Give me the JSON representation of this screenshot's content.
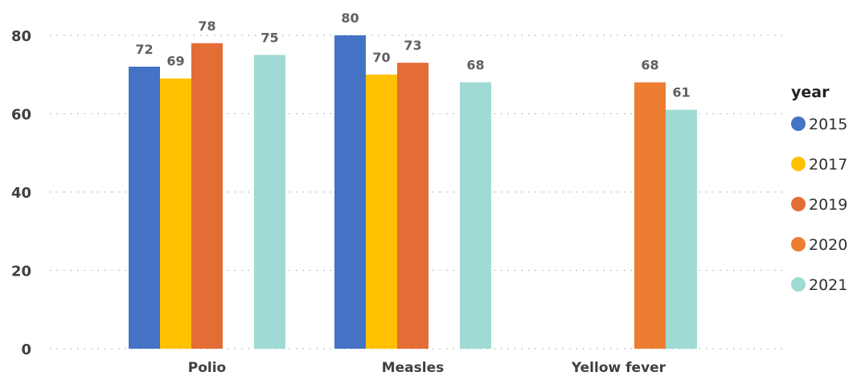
{
  "chart_data": {
    "type": "bar",
    "categories": [
      "Polio",
      "Measles",
      "Yellow fever"
    ],
    "series": [
      {
        "name": "2015",
        "color": "#4472C4",
        "values": [
          72,
          80,
          null
        ]
      },
      {
        "name": "2017",
        "color": "#FFC000",
        "values": [
          69,
          70,
          null
        ]
      },
      {
        "name": "2019",
        "color": "#E46C35",
        "values": [
          78,
          73,
          null
        ]
      },
      {
        "name": "2020",
        "color": "#ED7D31",
        "values": [
          null,
          null,
          68
        ]
      },
      {
        "name": "2021",
        "color": "#A0DAD4",
        "values": [
          75,
          68,
          61
        ]
      }
    ],
    "ylim": [
      0,
      80
    ],
    "yticks": [
      0,
      20,
      40,
      60,
      80
    ],
    "grid": true,
    "legend_title": "year",
    "legend_position": "right",
    "xlabel": "",
    "ylabel": "",
    "title": ""
  }
}
